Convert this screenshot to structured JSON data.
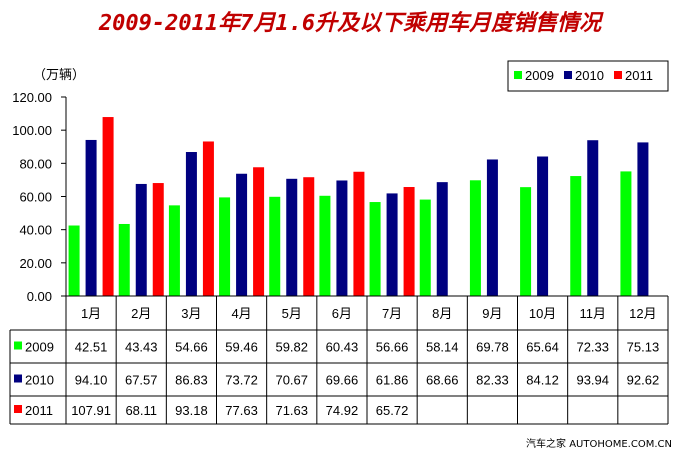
{
  "chart_data": {
    "type": "bar",
    "title": "2009-2011年7月1.6升及以下乘用车月度销售情况",
    "ylabel": "（万辆）",
    "ylim": [
      0,
      120
    ],
    "yticks": [
      "0.00",
      "20.00",
      "40.00",
      "60.00",
      "80.00",
      "100.00",
      "120.00"
    ],
    "categories": [
      "1月",
      "2月",
      "3月",
      "4月",
      "5月",
      "6月",
      "7月",
      "8月",
      "9月",
      "10月",
      "11月",
      "12月"
    ],
    "series": [
      {
        "name": "2009",
        "color": "#00ff00",
        "values": [
          42.51,
          43.43,
          54.66,
          59.46,
          59.82,
          60.43,
          56.66,
          58.14,
          69.78,
          65.64,
          72.33,
          75.13
        ],
        "labels": [
          "42.51",
          "43.43",
          "54.66",
          "59.46",
          "59.82",
          "60.43",
          "56.66",
          "58.14",
          "69.78",
          "65.64",
          "72.33",
          "75.13"
        ]
      },
      {
        "name": "2010",
        "color": "#000080",
        "values": [
          94.1,
          67.57,
          86.83,
          73.72,
          70.67,
          69.66,
          61.86,
          68.66,
          82.33,
          84.12,
          93.94,
          92.62
        ],
        "labels": [
          "94.10",
          "67.57",
          "86.83",
          "73.72",
          "70.67",
          "69.66",
          "61.86",
          "68.66",
          "82.33",
          "84.12",
          "93.94",
          "92.62"
        ]
      },
      {
        "name": "2011",
        "color": "#ff0000",
        "values": [
          107.91,
          68.11,
          93.18,
          77.63,
          71.63,
          74.92,
          65.72,
          null,
          null,
          null,
          null,
          null
        ],
        "labels": [
          "107.91",
          "68.11",
          "93.18",
          "77.63",
          "71.63",
          "74.92",
          "65.72",
          "",
          "",
          "",
          "",
          ""
        ]
      }
    ],
    "legend": "top-right",
    "grid": false,
    "source": "汽车之家 AUTOHOME.COM.CN"
  }
}
